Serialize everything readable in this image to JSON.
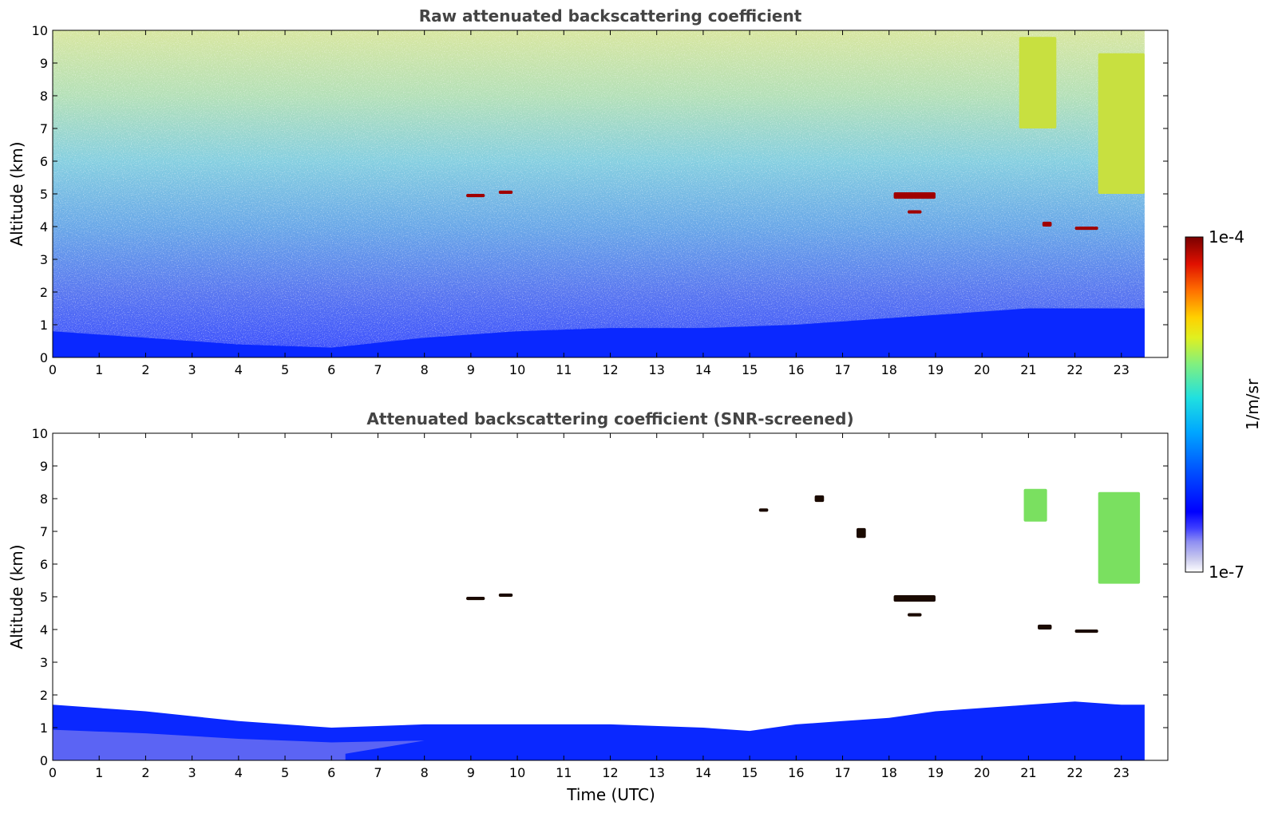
{
  "colors": {
    "colormap": [
      "#ffffff",
      "#c9c9ee",
      "#8f8ff2",
      "#4040ff",
      "#0000ff",
      "#0040ff",
      "#0080ff",
      "#00c0ff",
      "#20e0e0",
      "#60f0a0",
      "#a0f060",
      "#e0f020",
      "#ffe000",
      "#ffa000",
      "#ff6000",
      "#e02000",
      "#a00000",
      "#7a0000"
    ],
    "frame": "#000000",
    "title": "#444444"
  },
  "chart_data": [
    {
      "type": "heatmap",
      "title": "Raw attenuated backscattering coefficient",
      "xlabel": "",
      "ylabel": "Altitude (km)",
      "xlim": [
        0,
        24
      ],
      "ylim": [
        0,
        10
      ],
      "x_ticks": [
        "0",
        "1",
        "2",
        "3",
        "4",
        "5",
        "6",
        "7",
        "8",
        "9",
        "10",
        "11",
        "12",
        "13",
        "14",
        "15",
        "16",
        "17",
        "18",
        "19",
        "20",
        "21",
        "22",
        "23"
      ],
      "y_ticks": [
        "0",
        "1",
        "2",
        "3",
        "4",
        "5",
        "6",
        "7",
        "8",
        "9",
        "10"
      ],
      "data_extent_x": [
        0,
        23.5
      ],
      "boundary_layer_top_km": [
        [
          0,
          0.8
        ],
        [
          2,
          0.6
        ],
        [
          4,
          0.4
        ],
        [
          6,
          0.3
        ],
        [
          8,
          0.6
        ],
        [
          10,
          0.8
        ],
        [
          12,
          0.9
        ],
        [
          14,
          0.9
        ],
        [
          16,
          1.0
        ],
        [
          17,
          1.1
        ],
        [
          18,
          1.2
        ],
        [
          19,
          1.3
        ],
        [
          20,
          1.4
        ],
        [
          21,
          1.5
        ],
        [
          22,
          1.5
        ],
        [
          23,
          1.5
        ]
      ],
      "cloud_layers": [
        {
          "x": [
            8.9,
            9.3
          ],
          "y": [
            4.9,
            5.0
          ]
        },
        {
          "x": [
            9.6,
            9.9
          ],
          "y": [
            5.0,
            5.1
          ]
        },
        {
          "x": [
            18.1,
            19.0
          ],
          "y": [
            4.85,
            5.05
          ]
        },
        {
          "x": [
            18.4,
            18.7
          ],
          "y": [
            4.4,
            4.5
          ]
        },
        {
          "x": [
            21.3,
            21.5
          ],
          "y": [
            4.0,
            4.15
          ]
        },
        {
          "x": [
            22.0,
            22.5
          ],
          "y": [
            3.9,
            4.0
          ]
        },
        {
          "x": [
            20.8,
            21.6
          ],
          "y": [
            7.0,
            9.8
          ]
        },
        {
          "x": [
            22.5,
            23.5
          ],
          "y": [
            5.0,
            9.3
          ]
        }
      ]
    },
    {
      "type": "heatmap",
      "title": "Attenuated backscattering coefficient (SNR-screened)",
      "xlabel": "Time (UTC)",
      "ylabel": "Altitude (km)",
      "xlim": [
        0,
        24
      ],
      "ylim": [
        0,
        10
      ],
      "x_ticks": [
        "0",
        "1",
        "2",
        "3",
        "4",
        "5",
        "6",
        "7",
        "8",
        "9",
        "10",
        "11",
        "12",
        "13",
        "14",
        "15",
        "16",
        "17",
        "18",
        "19",
        "20",
        "21",
        "22",
        "23"
      ],
      "y_ticks": [
        "0",
        "1",
        "2",
        "3",
        "4",
        "5",
        "6",
        "7",
        "8",
        "9",
        "10"
      ],
      "data_extent_x": [
        0,
        23.5
      ],
      "boundary_layer_top_km": [
        [
          0,
          1.7
        ],
        [
          2,
          1.5
        ],
        [
          4,
          1.2
        ],
        [
          6,
          1.0
        ],
        [
          8,
          1.1
        ],
        [
          10,
          1.1
        ],
        [
          12,
          1.1
        ],
        [
          14,
          1.0
        ],
        [
          15,
          0.9
        ],
        [
          16,
          1.1
        ],
        [
          17,
          1.2
        ],
        [
          18,
          1.3
        ],
        [
          19,
          1.5
        ],
        [
          20,
          1.6
        ],
        [
          21,
          1.7
        ],
        [
          22,
          1.8
        ],
        [
          23,
          1.7
        ]
      ],
      "cloud_layers": [
        {
          "x": [
            8.9,
            9.3
          ],
          "y": [
            4.9,
            5.0
          ]
        },
        {
          "x": [
            9.6,
            9.9
          ],
          "y": [
            5.0,
            5.1
          ]
        },
        {
          "x": [
            18.1,
            19.0
          ],
          "y": [
            4.85,
            5.05
          ]
        },
        {
          "x": [
            18.4,
            18.7
          ],
          "y": [
            4.4,
            4.5
          ]
        },
        {
          "x": [
            21.2,
            21.5
          ],
          "y": [
            4.0,
            4.15
          ]
        },
        {
          "x": [
            22.0,
            22.5
          ],
          "y": [
            3.9,
            4.0
          ]
        },
        {
          "x": [
            20.9,
            21.4
          ],
          "y": [
            7.3,
            8.3
          ]
        },
        {
          "x": [
            22.5,
            23.4
          ],
          "y": [
            5.4,
            8.2
          ]
        },
        {
          "x": [
            15.2,
            15.4
          ],
          "y": [
            7.6,
            7.7
          ]
        },
        {
          "x": [
            16.4,
            16.6
          ],
          "y": [
            7.9,
            8.1
          ]
        },
        {
          "x": [
            17.3,
            17.5
          ],
          "y": [
            6.8,
            7.1
          ]
        }
      ]
    }
  ],
  "colorbar": {
    "max_label": "1e-4",
    "min_label": "1e-7",
    "unit_label": "1/m/sr"
  }
}
